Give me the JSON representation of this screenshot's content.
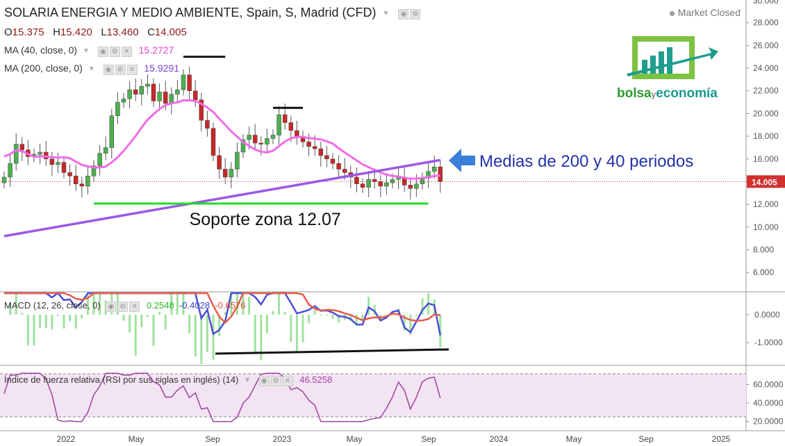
{
  "header": {
    "title": "SOLARIA ENERGIA Y MEDIO AMBIENTE, Spain, S, Madrid (CFD)",
    "ohlc": {
      "o_label": "O",
      "o": "15.375",
      "h_label": "H",
      "h": "15.420",
      "l_label": "L",
      "l": "13.460",
      "c_label": "C",
      "c": "14.005"
    },
    "ma40_label": "MA (40, close, 0)",
    "ma40_value": "15.2727",
    "ma200_label": "MA (200, close, 0)",
    "ma200_value": "15.9291",
    "market_status": "Market Closed"
  },
  "logo": {
    "word1": "bolsa",
    "word2": "y",
    "word3": "economía"
  },
  "annotations": {
    "medias": "Medias de 200 y 40 periodos",
    "soporte": "Soporte zona 12.07"
  },
  "macd": {
    "label": "MACD (12, 26, close, 0)",
    "hist": "0.2548",
    "macd": "-0.4028",
    "signal": "-0.6576"
  },
  "rsi": {
    "label": "Índice de fuerza relativa (RSI por sus siglas en inglés) (14)",
    "value": "46.5258"
  },
  "colors": {
    "up": "#4caf50",
    "down": "#c62828",
    "ma40": "#f06be8",
    "ma200": "#9b59e8",
    "support": "#22dd22",
    "macd": "#4a4fd6",
    "signal": "#e85a4a",
    "rsi": "#a040a0",
    "arrow": "#3a7fd8",
    "annotation": "#2233aa"
  },
  "chart_data": [
    {
      "type": "candlestick",
      "title": "SOLARIA ENERGIA Y MEDIO AMBIENTE, Spain, S, Madrid (CFD)",
      "timeframe": "weekly",
      "x_ticks": [
        "2022",
        "May",
        "Sep",
        "2023",
        "May",
        "Sep",
        "2024",
        "May",
        "Sep",
        "2025"
      ],
      "y_ticks": [
        "6.000",
        "8.000",
        "10.000",
        "12.000",
        "14.000",
        "16.000",
        "18.000",
        "20.000",
        "22.000",
        "24.000",
        "26.000",
        "28.000"
      ],
      "y_top_tick": "30.000",
      "ylim": [
        4.3,
        30.0
      ],
      "last_price": "14.005",
      "close_approx": [
        14.4,
        15.6,
        17.3,
        16.8,
        16.2,
        16.4,
        16.6,
        16.0,
        15.5,
        15.7,
        14.8,
        14.5,
        13.8,
        13.6,
        14.5,
        15.4,
        16.5,
        17.0,
        19.8,
        21.0,
        21.3,
        22.1,
        21.7,
        22.4,
        22.6,
        21.1,
        21.9,
        20.9,
        21.7,
        22.1,
        23.4,
        22.0,
        21.2,
        19.4,
        18.7,
        16.3,
        15.1,
        14.4,
        15.1,
        16.6,
        17.7,
        18.1,
        17.4,
        17.3,
        17.8,
        18.1,
        19.9,
        19.2,
        18.5,
        18.0,
        17.5,
        17.1,
        16.9,
        16.3,
        16.0,
        15.6,
        15.1,
        14.8,
        14.4,
        13.8,
        13.5,
        14.2,
        14.0,
        13.6,
        13.9,
        14.2,
        14.4,
        13.7,
        13.4,
        13.8,
        14.3,
        14.9,
        15.3,
        14.0
      ],
      "series": [
        {
          "name": "MA (40, close, 0)",
          "last_value": 15.2727
        },
        {
          "name": "MA (200, close, 0)",
          "last_value": 15.9291
        }
      ],
      "support_level": 12.07
    },
    {
      "type": "line",
      "title": "MACD (12, 26, close, 0)",
      "y_ticks": [
        "0.0000",
        "-1.0000"
      ],
      "series": [
        {
          "name": "MACD",
          "last_value": -0.4028
        },
        {
          "name": "Signal",
          "last_value": -0.6576
        },
        {
          "name": "Histogram",
          "last_value": 0.2548
        }
      ]
    },
    {
      "type": "line",
      "title": "Índice de fuerza relativa (RSI por sus siglas en inglés) (14)",
      "y_ticks": [
        "60.0000",
        "40.0000",
        "20.0000"
      ],
      "series": [
        {
          "name": "RSI",
          "last_value": 46.5258
        }
      ]
    }
  ]
}
